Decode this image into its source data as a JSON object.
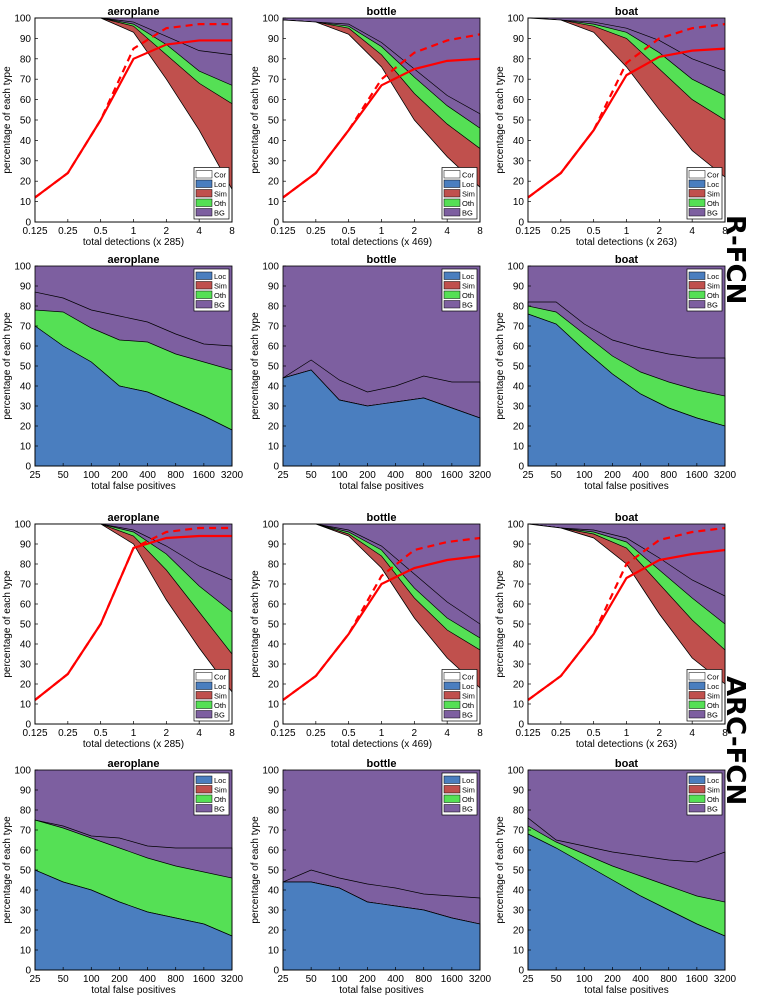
{
  "section_labels": {
    "rfcn": "R-FCN",
    "arcfcn": "ARC-FCN"
  },
  "colors": {
    "cor": "#ffffff",
    "loc": "#4a7ebf",
    "sim": "#c0504d",
    "oth": "#55e055",
    "bg": "#7d5fa0",
    "line": "#ff0000"
  },
  "chart_data": [
    {
      "type": "area",
      "title": "aeroplane",
      "xlabel": "total detections (x 285)",
      "ylabel": "percentage of each type",
      "x_ticks": [
        "0.125",
        "0.25",
        "0.5",
        "1",
        "2",
        "4",
        "8"
      ],
      "y_ticks": [
        "0",
        "10",
        "20",
        "30",
        "40",
        "50",
        "60",
        "70",
        "80",
        "90",
        "100"
      ],
      "ylim": [
        0,
        100
      ],
      "legend": [
        "Cor",
        "Loc",
        "Sim",
        "Oth",
        "BG"
      ],
      "legend_position": "bottom-right",
      "series": [
        {
          "name": "Cor",
          "values": [
            100,
            100,
            100,
            93,
            70,
            45,
            16
          ]
        },
        {
          "name": "Loc",
          "values": [
            100,
            100,
            100,
            96,
            82,
            68,
            58
          ]
        },
        {
          "name": "Sim",
          "values": [
            100,
            100,
            100,
            97,
            87,
            74,
            67
          ]
        },
        {
          "name": "Oth",
          "values": [
            100,
            100,
            100,
            98,
            91,
            84,
            82
          ]
        }
      ],
      "recall": [
        12,
        24,
        50,
        80,
        87,
        89,
        89
      ],
      "recall_dashed": [
        12,
        24,
        50,
        85,
        95,
        97,
        97
      ]
    },
    {
      "type": "area",
      "title": "bottle",
      "xlabel": "total detections (x 469)",
      "ylabel": "percentage of each type",
      "x_ticks": [
        "0.125",
        "0.25",
        "0.5",
        "1",
        "2",
        "4",
        "8"
      ],
      "y_ticks": [
        "0",
        "10",
        "20",
        "30",
        "40",
        "50",
        "60",
        "70",
        "80",
        "90",
        "100"
      ],
      "ylim": [
        0,
        100
      ],
      "legend": [
        "Cor",
        "Loc",
        "Sim",
        "Oth",
        "BG"
      ],
      "legend_position": "bottom-right",
      "series": [
        {
          "name": "Cor",
          "values": [
            99,
            98,
            92,
            76,
            50,
            32,
            17
          ]
        },
        {
          "name": "Loc",
          "values": [
            99,
            98,
            95,
            82,
            63,
            48,
            36
          ]
        },
        {
          "name": "Sim",
          "values": [
            99,
            98,
            96,
            86,
            71,
            57,
            46
          ]
        },
        {
          "name": "Oth",
          "values": [
            99,
            98,
            97,
            88,
            75,
            62,
            53
          ]
        }
      ],
      "recall": [
        12,
        24,
        45,
        67,
        75,
        79,
        80
      ],
      "recall_dashed": [
        12,
        24,
        45,
        70,
        83,
        89,
        92
      ]
    },
    {
      "type": "area",
      "title": "boat",
      "xlabel": "total detections (x 263)",
      "ylabel": "percentage of each type",
      "x_ticks": [
        "0.125",
        "0.25",
        "0.5",
        "1",
        "2",
        "4",
        "8"
      ],
      "y_ticks": [
        "0",
        "10",
        "20",
        "30",
        "40",
        "50",
        "60",
        "70",
        "80",
        "90",
        "100"
      ],
      "ylim": [
        0,
        100
      ],
      "legend": [
        "Cor",
        "Loc",
        "Sim",
        "Oth",
        "BG"
      ],
      "legend_position": "bottom-right",
      "series": [
        {
          "name": "Cor",
          "values": [
            100,
            99,
            93,
            76,
            55,
            35,
            22
          ]
        },
        {
          "name": "Loc",
          "values": [
            100,
            99,
            96,
            90,
            75,
            60,
            50
          ]
        },
        {
          "name": "Sim",
          "values": [
            100,
            99,
            97,
            93,
            83,
            70,
            62
          ]
        },
        {
          "name": "Oth",
          "values": [
            100,
            99,
            98,
            95,
            89,
            80,
            74
          ]
        }
      ],
      "recall": [
        12,
        24,
        45,
        72,
        81,
        84,
        85
      ],
      "recall_dashed": [
        12,
        24,
        45,
        78,
        90,
        95,
        97
      ]
    },
    {
      "type": "area",
      "title": "aeroplane",
      "xlabel": "total false positives",
      "ylabel": "percentage of each type",
      "x_ticks": [
        "25",
        "50",
        "100",
        "200",
        "400",
        "800",
        "1600",
        "3200"
      ],
      "y_ticks": [
        "0",
        "10",
        "20",
        "30",
        "40",
        "50",
        "60",
        "70",
        "80",
        "90",
        "100"
      ],
      "ylim": [
        0,
        100
      ],
      "legend": [
        "Loc",
        "Sim",
        "Oth",
        "BG"
      ],
      "legend_position": "top-right",
      "series": [
        {
          "name": "Loc",
          "values": [
            70,
            60,
            52,
            40,
            37,
            31,
            25,
            18
          ]
        },
        {
          "name": "Sim",
          "values": [
            78,
            77,
            69,
            63,
            62,
            56,
            52,
            48
          ]
        },
        {
          "name": "Oth",
          "values": [
            87,
            84,
            78,
            75,
            72,
            66,
            61,
            60
          ]
        }
      ]
    },
    {
      "type": "area",
      "title": "bottle",
      "xlabel": "total false positives",
      "ylabel": "percentage of each type",
      "x_ticks": [
        "25",
        "50",
        "100",
        "200",
        "400",
        "800",
        "1600",
        "3200"
      ],
      "y_ticks": [
        "0",
        "10",
        "20",
        "30",
        "40",
        "50",
        "60",
        "70",
        "80",
        "90",
        "100"
      ],
      "ylim": [
        0,
        100
      ],
      "legend": [
        "Loc",
        "Sim",
        "Oth",
        "BG"
      ],
      "legend_position": "top-right",
      "series": [
        {
          "name": "Loc",
          "values": [
            44,
            48,
            33,
            30,
            32,
            34,
            29,
            24
          ]
        },
        {
          "name": "Sim",
          "values": [
            44,
            48,
            33,
            30,
            32,
            34,
            29,
            24
          ]
        },
        {
          "name": "Oth",
          "values": [
            44,
            53,
            43,
            37,
            40,
            45,
            42,
            42
          ]
        }
      ]
    },
    {
      "type": "area",
      "title": "boat",
      "xlabel": "total false positives",
      "ylabel": "percentage of each type",
      "x_ticks": [
        "25",
        "50",
        "100",
        "200",
        "400",
        "800",
        "1600",
        "3200"
      ],
      "y_ticks": [
        "0",
        "10",
        "20",
        "30",
        "40",
        "50",
        "60",
        "70",
        "80",
        "90",
        "100"
      ],
      "ylim": [
        0,
        100
      ],
      "legend": [
        "Loc",
        "Sim",
        "Oth",
        "BG"
      ],
      "legend_position": "top-right",
      "series": [
        {
          "name": "Loc",
          "values": [
            76,
            71,
            58,
            46,
            36,
            29,
            24,
            20
          ]
        },
        {
          "name": "Sim",
          "values": [
            80,
            77,
            66,
            55,
            47,
            42,
            38,
            35
          ]
        },
        {
          "name": "Oth",
          "values": [
            82,
            82,
            71,
            63,
            59,
            56,
            54,
            54
          ]
        }
      ]
    },
    {
      "type": "area",
      "title": "aeroplane",
      "xlabel": "total detections (x 285)",
      "ylabel": "percentage of each type",
      "x_ticks": [
        "0.125",
        "0.25",
        "0.5",
        "1",
        "2",
        "4",
        "8"
      ],
      "y_ticks": [
        "0",
        "10",
        "20",
        "30",
        "40",
        "50",
        "60",
        "70",
        "80",
        "90",
        "100"
      ],
      "ylim": [
        0,
        100
      ],
      "legend": [
        "Cor",
        "Loc",
        "Sim",
        "Oth",
        "BG"
      ],
      "legend_position": "bottom-right",
      "series": [
        {
          "name": "Cor",
          "values": [
            100,
            100,
            100,
            90,
            62,
            38,
            16
          ]
        },
        {
          "name": "Loc",
          "values": [
            100,
            100,
            100,
            94,
            77,
            56,
            35
          ]
        },
        {
          "name": "Sim",
          "values": [
            100,
            100,
            100,
            96,
            85,
            69,
            56
          ]
        },
        {
          "name": "Oth",
          "values": [
            100,
            100,
            100,
            97,
            89,
            79,
            72
          ]
        }
      ],
      "recall": [
        12,
        25,
        50,
        88,
        93,
        94,
        94
      ],
      "recall_dashed": [
        12,
        25,
        50,
        88,
        96,
        98,
        98
      ]
    },
    {
      "type": "area",
      "title": "bottle",
      "xlabel": "total detections (x 469)",
      "ylabel": "percentage of each type",
      "x_ticks": [
        "0.125",
        "0.25",
        "0.5",
        "1",
        "2",
        "4",
        "8"
      ],
      "y_ticks": [
        "0",
        "10",
        "20",
        "30",
        "40",
        "50",
        "60",
        "70",
        "80",
        "90",
        "100"
      ],
      "ylim": [
        0,
        100
      ],
      "legend": [
        "Cor",
        "Loc",
        "Sim",
        "Oth",
        "BG"
      ],
      "legend_position": "bottom-right",
      "series": [
        {
          "name": "Cor",
          "values": [
            100,
            100,
            94,
            78,
            53,
            33,
            18
          ]
        },
        {
          "name": "Loc",
          "values": [
            100,
            100,
            95,
            84,
            63,
            47,
            37
          ]
        },
        {
          "name": "Sim",
          "values": [
            100,
            100,
            96,
            87,
            68,
            53,
            43
          ]
        },
        {
          "name": "Oth",
          "values": [
            100,
            100,
            97,
            89,
            75,
            61,
            50
          ]
        }
      ],
      "recall": [
        12,
        24,
        45,
        70,
        78,
        82,
        84
      ],
      "recall_dashed": [
        12,
        24,
        45,
        74,
        87,
        91,
        93
      ]
    },
    {
      "type": "area",
      "title": "boat",
      "xlabel": "total detections (x 263)",
      "ylabel": "percentage of each type",
      "x_ticks": [
        "0.125",
        "0.25",
        "0.5",
        "1",
        "2",
        "4",
        "8"
      ],
      "y_ticks": [
        "0",
        "10",
        "20",
        "30",
        "40",
        "50",
        "60",
        "70",
        "80",
        "90",
        "100"
      ],
      "ylim": [
        0,
        100
      ],
      "legend": [
        "Cor",
        "Loc",
        "Sim",
        "Oth",
        "BG"
      ],
      "legend_position": "bottom-right",
      "series": [
        {
          "name": "Cor",
          "values": [
            100,
            98,
            93,
            80,
            55,
            33,
            20
          ]
        },
        {
          "name": "Loc",
          "values": [
            100,
            98,
            95,
            88,
            70,
            52,
            37
          ]
        },
        {
          "name": "Sim",
          "values": [
            100,
            98,
            96,
            91,
            77,
            63,
            50
          ]
        },
        {
          "name": "Oth",
          "values": [
            100,
            98,
            97,
            93,
            83,
            72,
            64
          ]
        }
      ],
      "recall": [
        12,
        24,
        45,
        73,
        82,
        85,
        87
      ],
      "recall_dashed": [
        12,
        24,
        45,
        80,
        92,
        96,
        98
      ]
    },
    {
      "type": "area",
      "title": "aeroplane",
      "xlabel": "total false positives",
      "ylabel": "percentage of each type",
      "x_ticks": [
        "25",
        "50",
        "100",
        "200",
        "400",
        "800",
        "1600",
        "3200"
      ],
      "y_ticks": [
        "0",
        "10",
        "20",
        "30",
        "40",
        "50",
        "60",
        "70",
        "80",
        "90",
        "100"
      ],
      "ylim": [
        0,
        100
      ],
      "legend": [
        "Loc",
        "Sim",
        "Oth",
        "BG"
      ],
      "legend_position": "top-right",
      "series": [
        {
          "name": "Loc",
          "values": [
            50,
            44,
            40,
            34,
            29,
            26,
            23,
            17
          ]
        },
        {
          "name": "Sim",
          "values": [
            75,
            71,
            66,
            61,
            56,
            52,
            49,
            46
          ]
        },
        {
          "name": "Oth",
          "values": [
            75,
            72,
            67,
            66,
            62,
            61,
            61,
            61
          ]
        }
      ]
    },
    {
      "type": "area",
      "title": "bottle",
      "xlabel": "total false positives",
      "ylabel": "percentage of each type",
      "x_ticks": [
        "25",
        "50",
        "100",
        "200",
        "400",
        "800",
        "1600",
        "3200"
      ],
      "y_ticks": [
        "0",
        "10",
        "20",
        "30",
        "40",
        "50",
        "60",
        "70",
        "80",
        "90",
        "100"
      ],
      "ylim": [
        0,
        100
      ],
      "legend": [
        "Loc",
        "Sim",
        "Oth",
        "BG"
      ],
      "legend_position": "top-right",
      "series": [
        {
          "name": "Loc",
          "values": [
            44,
            44,
            41,
            34,
            32,
            30,
            26,
            23
          ]
        },
        {
          "name": "Sim",
          "values": [
            44,
            44,
            41,
            34,
            32,
            30,
            26,
            23
          ]
        },
        {
          "name": "Oth",
          "values": [
            44,
            50,
            46,
            43,
            41,
            38,
            37,
            36
          ]
        }
      ]
    },
    {
      "type": "area",
      "title": "boat",
      "xlabel": "total false positives",
      "ylabel": "percentage of each type",
      "x_ticks": [
        "25",
        "50",
        "100",
        "200",
        "400",
        "800",
        "1600",
        "3200"
      ],
      "y_ticks": [
        "0",
        "10",
        "20",
        "30",
        "40",
        "50",
        "60",
        "70",
        "80",
        "90",
        "100"
      ],
      "ylim": [
        0,
        100
      ],
      "legend": [
        "Loc",
        "Sim",
        "Oth",
        "BG"
      ],
      "legend_position": "top-right",
      "series": [
        {
          "name": "Loc",
          "values": [
            68,
            61,
            53,
            45,
            37,
            30,
            23,
            17
          ]
        },
        {
          "name": "Sim",
          "values": [
            72,
            64,
            58,
            52,
            47,
            42,
            37,
            34
          ]
        },
        {
          "name": "Oth",
          "values": [
            76,
            65,
            62,
            59,
            57,
            55,
            54,
            59
          ]
        }
      ]
    }
  ]
}
